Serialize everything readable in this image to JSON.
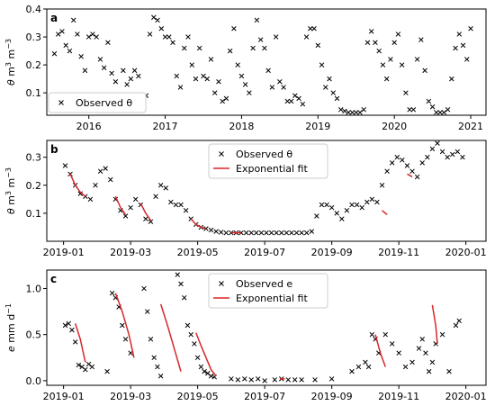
{
  "chart_data": [
    {
      "type": "scatter",
      "panel_label": "a",
      "ylabel_parts": [
        "θ",
        " m",
        "3",
        " m",
        "−3"
      ],
      "ylim": [
        0.02,
        0.4
      ],
      "yticks": [
        0.1,
        0.2,
        0.3,
        0.4
      ],
      "ytick_labels": [
        "0.1",
        "0.2",
        "0.3",
        "0.4"
      ],
      "xlim": [
        2015.45,
        2021.2
      ],
      "xticks": [
        2016,
        2017,
        2018,
        2019,
        2020,
        2021
      ],
      "xtick_labels": [
        "2016",
        "2017",
        "2018",
        "2019",
        "2020",
        "2021"
      ],
      "legend_placement": "lower-left",
      "series": [
        {
          "name": "Observed θ",
          "marker": "x",
          "color": "#000000",
          "x": [
            2015.55,
            2015.6,
            2015.65,
            2015.7,
            2015.75,
            2015.8,
            2015.85,
            2015.9,
            2015.95,
            2016.0,
            2016.05,
            2016.1,
            2016.15,
            2016.2,
            2016.25,
            2016.3,
            2016.35,
            2016.4,
            2016.45,
            2016.5,
            2016.55,
            2016.6,
            2016.65,
            2016.7,
            2016.75,
            2016.8,
            2016.85,
            2016.9,
            2016.95,
            2017.0,
            2017.05,
            2017.1,
            2017.15,
            2017.2,
            2017.25,
            2017.3,
            2017.35,
            2017.4,
            2017.45,
            2017.5,
            2017.55,
            2017.6,
            2017.65,
            2017.7,
            2017.75,
            2017.8,
            2017.85,
            2017.9,
            2017.95,
            2018.0,
            2018.05,
            2018.1,
            2018.15,
            2018.2,
            2018.25,
            2018.3,
            2018.35,
            2018.4,
            2018.45,
            2018.5,
            2018.55,
            2018.6,
            2018.65,
            2018.7,
            2018.75,
            2018.8,
            2018.85,
            2018.9,
            2018.95,
            2019.0,
            2019.05,
            2019.1,
            2019.15,
            2019.2,
            2019.25,
            2019.3,
            2019.35,
            2019.4,
            2019.45,
            2019.5,
            2019.55,
            2019.6,
            2019.65,
            2019.7,
            2019.75,
            2019.8,
            2019.85,
            2019.9,
            2019.95,
            2020.0,
            2020.05,
            2020.1,
            2020.15,
            2020.2,
            2020.25,
            2020.3,
            2020.35,
            2020.4,
            2020.45,
            2020.5,
            2020.55,
            2020.6,
            2020.65,
            2020.7,
            2020.75,
            2020.8,
            2020.85,
            2020.9,
            2020.95,
            2021.0
          ],
          "y": [
            0.24,
            0.31,
            0.32,
            0.27,
            0.25,
            0.36,
            0.31,
            0.23,
            0.18,
            0.3,
            0.31,
            0.3,
            0.22,
            0.19,
            0.28,
            0.17,
            0.14,
            0.08,
            0.18,
            0.13,
            0.15,
            0.18,
            0.16,
            0.07,
            0.09,
            0.31,
            0.37,
            0.36,
            0.33,
            0.3,
            0.3,
            0.28,
            0.16,
            0.12,
            0.26,
            0.3,
            0.2,
            0.15,
            0.26,
            0.16,
            0.15,
            0.22,
            0.1,
            0.14,
            0.07,
            0.08,
            0.25,
            0.33,
            0.2,
            0.16,
            0.13,
            0.1,
            0.26,
            0.36,
            0.29,
            0.26,
            0.18,
            0.12,
            0.3,
            0.14,
            0.12,
            0.07,
            0.07,
            0.09,
            0.08,
            0.06,
            0.3,
            0.33,
            0.33,
            0.27,
            0.2,
            0.12,
            0.15,
            0.1,
            0.08,
            0.04,
            0.035,
            0.03,
            0.03,
            0.03,
            0.03,
            0.04,
            0.28,
            0.32,
            0.28,
            0.25,
            0.2,
            0.15,
            0.22,
            0.28,
            0.31,
            0.2,
            0.1,
            0.04,
            0.04,
            0.22,
            0.29,
            0.18,
            0.07,
            0.05,
            0.03,
            0.03,
            0.03,
            0.04,
            0.15,
            0.26,
            0.31,
            0.27,
            0.22,
            0.33
          ]
        }
      ]
    },
    {
      "type": "scatter",
      "panel_label": "b",
      "ylabel_parts": [
        "θ",
        " m",
        "3",
        " m",
        "−3"
      ],
      "ylim": [
        0.0,
        0.36
      ],
      "yticks": [
        0.1,
        0.2,
        0.3
      ],
      "ytick_labels": [
        "0.1",
        "0.2",
        "0.3"
      ],
      "xlim": [
        -0.5,
        12.6
      ],
      "xticks": [
        0,
        2,
        4,
        6,
        8,
        10,
        12
      ],
      "xtick_labels": [
        "2019-01",
        "2019-03",
        "2019-05",
        "2019-07",
        "2019-09",
        "2019-11",
        "2020-01"
      ],
      "legend_placement": "upper-center",
      "series": [
        {
          "name": "Observed θ",
          "marker": "x",
          "color": "#000000",
          "x": [
            0.05,
            0.2,
            0.35,
            0.5,
            0.65,
            0.8,
            0.95,
            1.1,
            1.25,
            1.4,
            1.55,
            1.7,
            1.85,
            2.0,
            2.15,
            2.3,
            2.45,
            2.6,
            2.75,
            2.9,
            3.05,
            3.2,
            3.35,
            3.5,
            3.65,
            3.8,
            3.95,
            4.1,
            4.25,
            4.4,
            4.55,
            4.7,
            4.85,
            5.0,
            5.15,
            5.3,
            5.45,
            5.6,
            5.75,
            5.9,
            6.05,
            6.2,
            6.35,
            6.5,
            6.65,
            6.8,
            6.95,
            7.1,
            7.25,
            7.4,
            7.55,
            7.7,
            7.85,
            8.0,
            8.15,
            8.3,
            8.45,
            8.6,
            8.75,
            8.9,
            9.05,
            9.2,
            9.35,
            9.5,
            9.65,
            9.8,
            9.95,
            10.1,
            10.25,
            10.4,
            10.55,
            10.7,
            10.85,
            11.0,
            11.15,
            11.3,
            11.45,
            11.6,
            11.75,
            11.9
          ],
          "y": [
            0.27,
            0.24,
            0.2,
            0.17,
            0.16,
            0.15,
            0.2,
            0.25,
            0.26,
            0.22,
            0.15,
            0.11,
            0.09,
            0.12,
            0.15,
            0.13,
            0.08,
            0.07,
            0.16,
            0.2,
            0.19,
            0.14,
            0.13,
            0.13,
            0.11,
            0.08,
            0.06,
            0.05,
            0.045,
            0.04,
            0.035,
            0.032,
            0.03,
            0.03,
            0.03,
            0.03,
            0.03,
            0.03,
            0.03,
            0.03,
            0.03,
            0.03,
            0.03,
            0.03,
            0.03,
            0.03,
            0.03,
            0.03,
            0.03,
            0.035,
            0.09,
            0.13,
            0.13,
            0.12,
            0.1,
            0.08,
            0.11,
            0.13,
            0.13,
            0.12,
            0.14,
            0.15,
            0.14,
            0.2,
            0.25,
            0.28,
            0.3,
            0.29,
            0.27,
            0.25,
            0.23,
            0.28,
            0.3,
            0.33,
            0.35,
            0.32,
            0.3,
            0.31,
            0.32,
            0.3
          ]
        },
        {
          "name": "Exponential fit",
          "color": "#d62728",
          "segments": [
            [
              [
                0.2,
                0.24
              ],
              [
                0.35,
                0.2
              ],
              [
                0.5,
                0.175
              ],
              [
                0.65,
                0.16
              ]
            ],
            [
              [
                1.55,
                0.16
              ],
              [
                1.7,
                0.12
              ],
              [
                1.85,
                0.095
              ]
            ],
            [
              [
                2.3,
                0.135
              ],
              [
                2.45,
                0.1
              ],
              [
                2.6,
                0.075
              ]
            ],
            [
              [
                3.8,
                0.08
              ],
              [
                3.95,
                0.06
              ],
              [
                4.1,
                0.05
              ],
              [
                4.25,
                0.045
              ]
            ],
            [
              [
                5.0,
                0.031
              ],
              [
                5.3,
                0.03
              ]
            ],
            [
              [
                9.5,
                0.11
              ],
              [
                9.65,
                0.095
              ]
            ],
            [
              [
                10.25,
                0.24
              ],
              [
                10.4,
                0.23
              ]
            ]
          ]
        }
      ]
    },
    {
      "type": "scatter",
      "panel_label": "c",
      "ylabel_parts": [
        "e",
        " mm d",
        "−1"
      ],
      "ylim": [
        -0.05,
        1.2
      ],
      "yticks": [
        0.0,
        0.5,
        1.0
      ],
      "ytick_labels": [
        "0.0",
        "0.5",
        "1.0"
      ],
      "xlim": [
        -0.5,
        12.6
      ],
      "xticks": [
        0,
        2,
        4,
        6,
        8,
        10,
        12
      ],
      "xtick_labels": [
        "2019-01",
        "2019-03",
        "2019-05",
        "2019-07",
        "2019-09",
        "2019-11",
        "2020-01"
      ],
      "legend_placement": "upper-center",
      "series": [
        {
          "name": "Observed e",
          "marker": "x",
          "color": "#000000",
          "x": [
            0.05,
            0.15,
            0.25,
            0.35,
            0.45,
            0.55,
            0.65,
            0.75,
            0.85,
            1.3,
            1.45,
            1.55,
            1.65,
            1.75,
            1.85,
            2.0,
            2.4,
            2.5,
            2.6,
            2.7,
            2.8,
            2.9,
            3.4,
            3.5,
            3.6,
            3.7,
            3.8,
            3.9,
            4.0,
            4.1,
            4.2,
            4.3,
            4.4,
            4.5,
            5.0,
            5.2,
            5.4,
            5.6,
            5.8,
            6.0,
            6.3,
            6.5,
            6.7,
            6.9,
            7.1,
            7.5,
            8.0,
            8.6,
            8.8,
            9.0,
            9.1,
            9.2,
            9.3,
            9.4,
            9.6,
            9.8,
            10.0,
            10.2,
            10.4,
            10.6,
            10.7,
            10.8,
            10.9,
            11.0,
            11.1,
            11.3,
            11.5,
            11.7,
            11.8
          ],
          "y": [
            0.6,
            0.62,
            0.55,
            0.42,
            0.17,
            0.15,
            0.12,
            0.18,
            0.15,
            0.1,
            0.95,
            0.9,
            0.8,
            0.6,
            0.45,
            0.3,
            1.0,
            0.75,
            0.45,
            0.25,
            0.15,
            0.05,
            1.15,
            1.05,
            0.9,
            0.6,
            0.5,
            0.4,
            0.25,
            0.15,
            0.1,
            0.08,
            0.05,
            0.04,
            0.02,
            0.01,
            0.02,
            0.01,
            0.02,
            0.0,
            0.01,
            0.02,
            0.01,
            0.01,
            0.01,
            0.01,
            0.02,
            0.1,
            0.15,
            0.2,
            0.15,
            0.5,
            0.45,
            0.3,
            0.5,
            0.4,
            0.3,
            0.15,
            0.2,
            0.35,
            0.45,
            0.3,
            0.1,
            0.2,
            0.4,
            0.5,
            0.1,
            0.6,
            0.65
          ]
        },
        {
          "name": "Exponential fit",
          "color": "#d62728",
          "segments": [
            [
              [
                0.35,
                0.62
              ],
              [
                0.5,
                0.45
              ],
              [
                0.65,
                0.2
              ]
            ],
            [
              [
                1.55,
                0.95
              ],
              [
                1.75,
                0.75
              ],
              [
                1.95,
                0.5
              ],
              [
                2.1,
                0.25
              ]
            ],
            [
              [
                2.9,
                0.83
              ],
              [
                3.1,
                0.6
              ],
              [
                3.3,
                0.35
              ],
              [
                3.5,
                0.1
              ]
            ],
            [
              [
                3.95,
                0.52
              ],
              [
                4.1,
                0.38
              ],
              [
                4.25,
                0.25
              ],
              [
                4.4,
                0.12
              ],
              [
                4.55,
                0.05
              ]
            ],
            [
              [
                6.45,
                0.02
              ],
              [
                6.6,
                0.02
              ]
            ],
            [
              [
                9.3,
                0.5
              ],
              [
                9.45,
                0.3
              ],
              [
                9.6,
                0.15
              ]
            ],
            [
              [
                11.0,
                0.82
              ],
              [
                11.1,
                0.6
              ],
              [
                11.15,
                0.4
              ]
            ]
          ]
        }
      ]
    }
  ]
}
